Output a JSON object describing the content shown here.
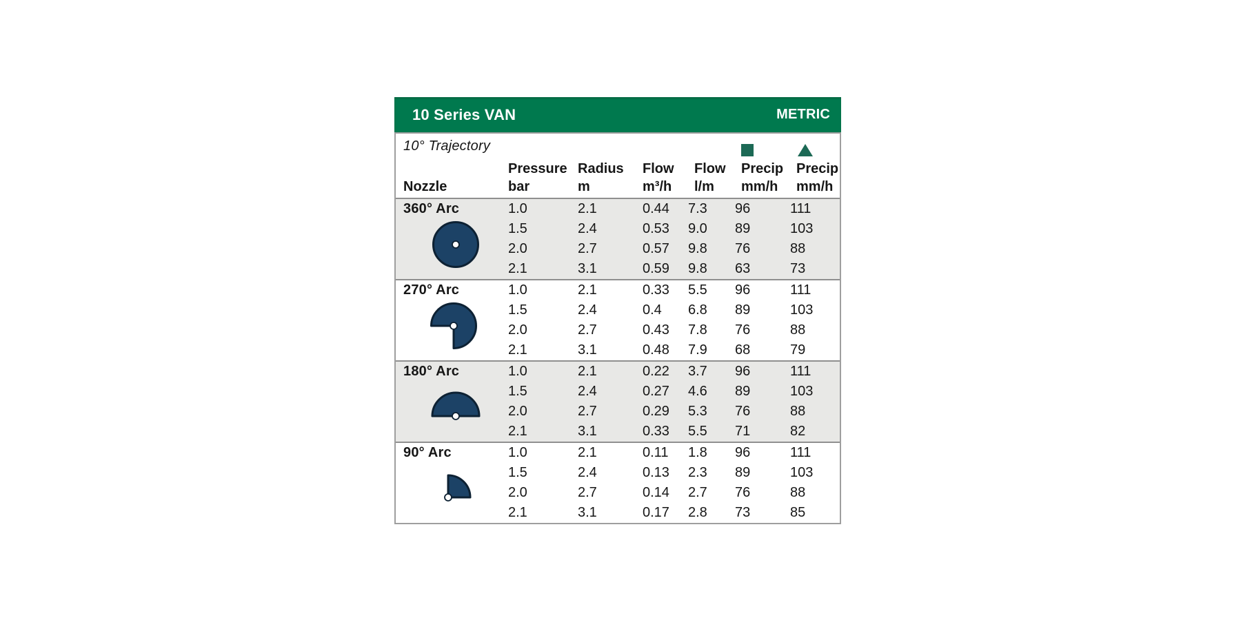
{
  "card": {
    "title": "10 Series VAN",
    "unit_label": "METRIC",
    "trajectory_note": "10° Trajectory",
    "colors": {
      "header_green": "#00794e",
      "legend_green": "#1c6955",
      "nozzle_navy": "#1c4266",
      "nozzle_stroke": "#0d2133",
      "shaded_row_gray": "#e8e8e6",
      "border_gray": "#9e9e9e"
    },
    "columns": {
      "nozzle": [
        "Nozzle",
        ""
      ],
      "pressure": [
        "Pressure",
        "bar"
      ],
      "radius": [
        "Radius",
        "m"
      ],
      "flow_m3h": [
        "Flow",
        "m³/h"
      ],
      "flow_lm": [
        "Flow",
        "l/m"
      ],
      "precip_square": [
        "Precip",
        "mm/h"
      ],
      "precip_triangle": [
        "Precip",
        "mm/h"
      ]
    },
    "legend": {
      "square_icon": "square",
      "triangle_icon": "triangle"
    },
    "groups": [
      {
        "arc_label": "360° Arc",
        "icon": "arc-360",
        "shaded": true,
        "rows": [
          {
            "pressure": "1.0",
            "radius": "2.1",
            "flow_m3h": "0.44",
            "flow_lm": "7.3",
            "precip_sq": "96",
            "precip_tri": "111"
          },
          {
            "pressure": "1.5",
            "radius": "2.4",
            "flow_m3h": "0.53",
            "flow_lm": "9.0",
            "precip_sq": "89",
            "precip_tri": "103"
          },
          {
            "pressure": "2.0",
            "radius": "2.7",
            "flow_m3h": "0.57",
            "flow_lm": "9.8",
            "precip_sq": "76",
            "precip_tri": "88"
          },
          {
            "pressure": "2.1",
            "radius": "3.1",
            "flow_m3h": "0.59",
            "flow_lm": "9.8",
            "precip_sq": "63",
            "precip_tri": "73"
          }
        ]
      },
      {
        "arc_label": "270° Arc",
        "icon": "arc-270",
        "shaded": false,
        "rows": [
          {
            "pressure": "1.0",
            "radius": "2.1",
            "flow_m3h": "0.33",
            "flow_lm": "5.5",
            "precip_sq": "96",
            "precip_tri": "111"
          },
          {
            "pressure": "1.5",
            "radius": "2.4",
            "flow_m3h": "0.4",
            "flow_lm": "6.8",
            "precip_sq": "89",
            "precip_tri": "103"
          },
          {
            "pressure": "2.0",
            "radius": "2.7",
            "flow_m3h": "0.43",
            "flow_lm": "7.8",
            "precip_sq": "76",
            "precip_tri": "88"
          },
          {
            "pressure": "2.1",
            "radius": "3.1",
            "flow_m3h": "0.48",
            "flow_lm": "7.9",
            "precip_sq": "68",
            "precip_tri": "79"
          }
        ]
      },
      {
        "arc_label": "180° Arc",
        "icon": "arc-180",
        "shaded": true,
        "rows": [
          {
            "pressure": "1.0",
            "radius": "2.1",
            "flow_m3h": "0.22",
            "flow_lm": "3.7",
            "precip_sq": "96",
            "precip_tri": "111"
          },
          {
            "pressure": "1.5",
            "radius": "2.4",
            "flow_m3h": "0.27",
            "flow_lm": "4.6",
            "precip_sq": "89",
            "precip_tri": "103"
          },
          {
            "pressure": "2.0",
            "radius": "2.7",
            "flow_m3h": "0.29",
            "flow_lm": "5.3",
            "precip_sq": "76",
            "precip_tri": "88"
          },
          {
            "pressure": "2.1",
            "radius": "3.1",
            "flow_m3h": "0.33",
            "flow_lm": "5.5",
            "precip_sq": "71",
            "precip_tri": "82"
          }
        ]
      },
      {
        "arc_label": "90° Arc",
        "icon": "arc-90",
        "shaded": false,
        "rows": [
          {
            "pressure": "1.0",
            "radius": "2.1",
            "flow_m3h": "0.11",
            "flow_lm": "1.8",
            "precip_sq": "96",
            "precip_tri": "111"
          },
          {
            "pressure": "1.5",
            "radius": "2.4",
            "flow_m3h": "0.13",
            "flow_lm": "2.3",
            "precip_sq": "89",
            "precip_tri": "103"
          },
          {
            "pressure": "2.0",
            "radius": "2.7",
            "flow_m3h": "0.14",
            "flow_lm": "2.7",
            "precip_sq": "76",
            "precip_tri": "88"
          },
          {
            "pressure": "2.1",
            "radius": "3.1",
            "flow_m3h": "0.17",
            "flow_lm": "2.8",
            "precip_sq": "73",
            "precip_tri": "85"
          }
        ]
      }
    ]
  }
}
